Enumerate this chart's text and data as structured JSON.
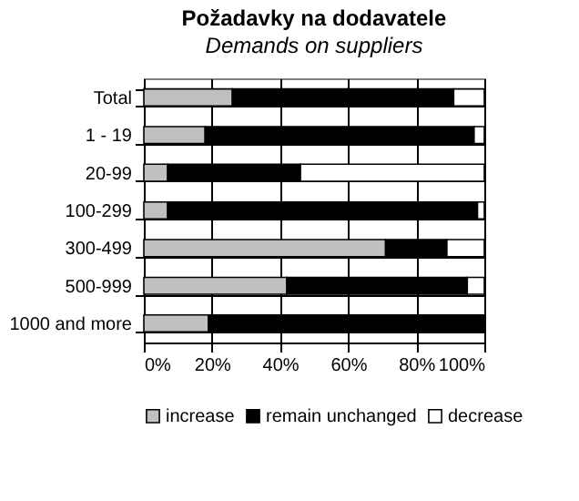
{
  "chart_data": {
    "type": "bar",
    "orientation": "horizontal",
    "stacked": true,
    "title": "Požadavky na dodavatele",
    "subtitle": "Demands on suppliers",
    "categories": [
      "Total",
      "1 - 19",
      "20-99",
      "100-299",
      "300-499",
      "500-999",
      "1000 and more"
    ],
    "series": [
      {
        "name": "increase",
        "color": "#c0c0c0",
        "values": [
          26,
          18,
          7,
          7,
          71,
          42,
          19
        ]
      },
      {
        "name": "remain unchanged",
        "color": "#000000",
        "values": [
          65,
          79,
          39,
          91,
          18,
          53,
          81
        ]
      },
      {
        "name": "decrease",
        "color": "#ffffff",
        "values": [
          9,
          3,
          54,
          2,
          11,
          5,
          0
        ]
      }
    ],
    "xlim": [
      0,
      100
    ],
    "xticks": [
      {
        "value": 0,
        "label": "0%"
      },
      {
        "value": 20,
        "label": "20%"
      },
      {
        "value": 40,
        "label": "40%"
      },
      {
        "value": 60,
        "label": "60%"
      },
      {
        "value": 80,
        "label": "80%"
      },
      {
        "value": 100,
        "label": "100%"
      }
    ],
    "grid": true,
    "legend": "bottom"
  }
}
